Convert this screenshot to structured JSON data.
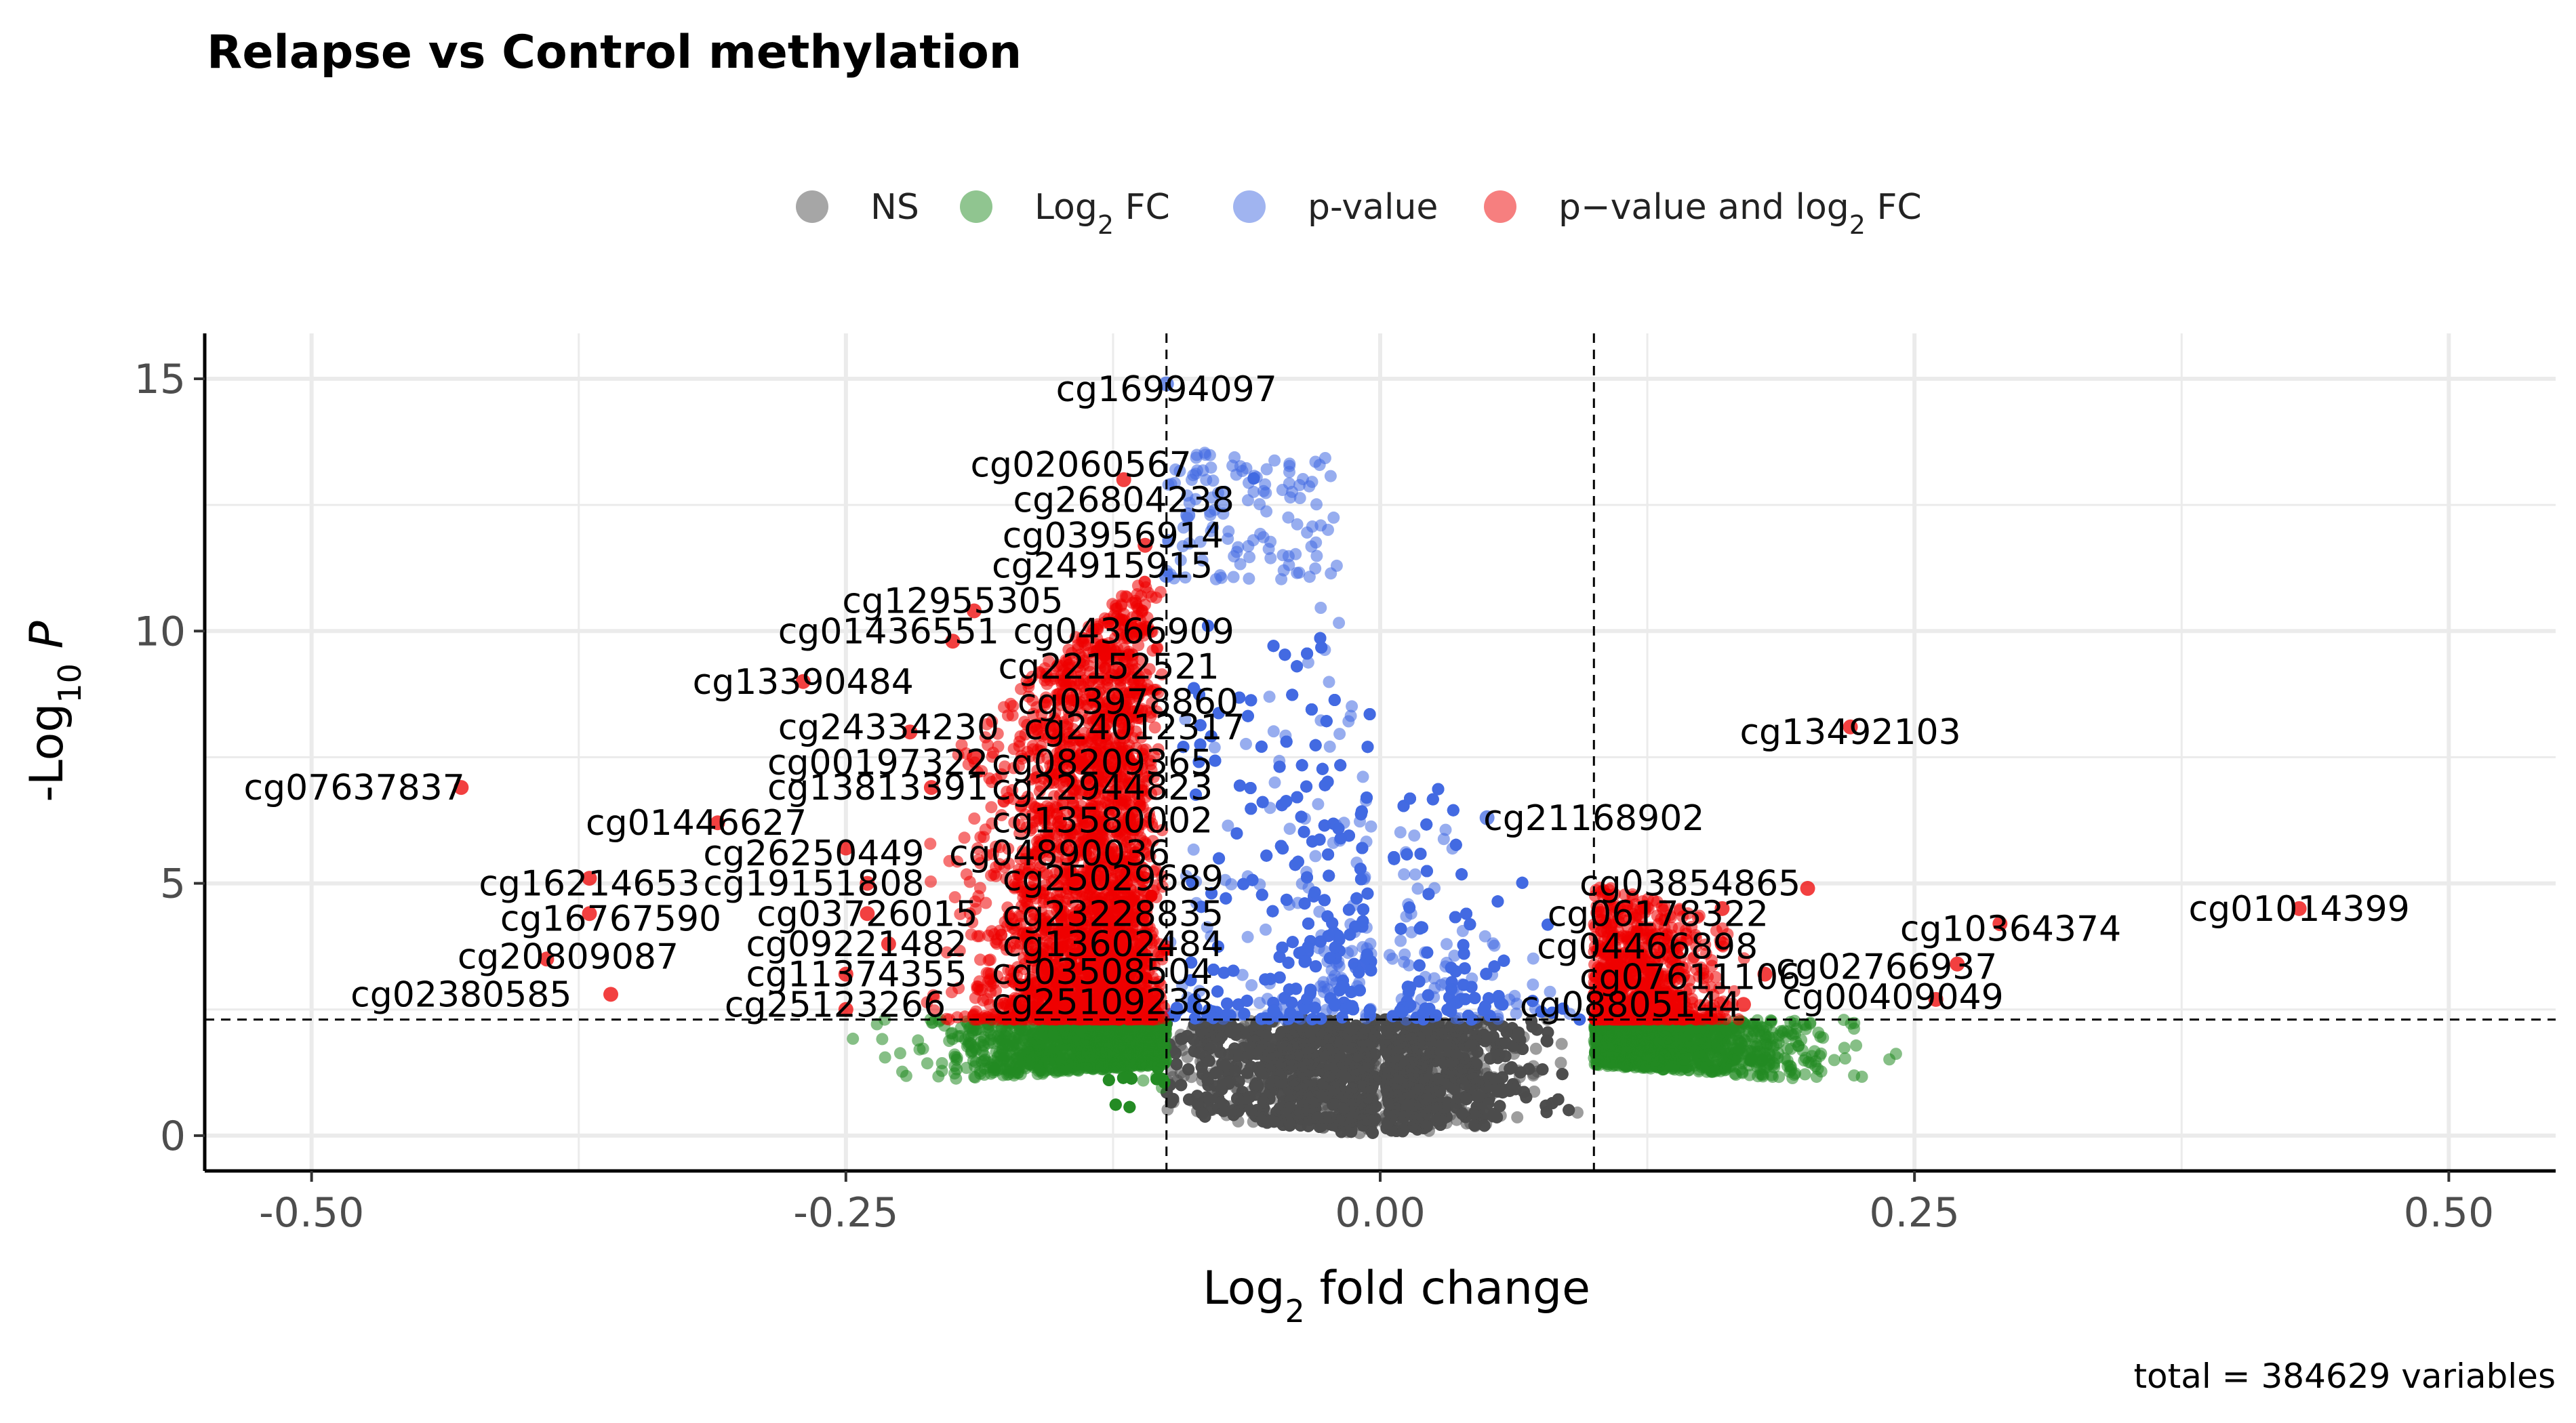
{
  "chart_data": {
    "type": "scatter",
    "title": "Relapse vs Control methylation",
    "xlabel": "Log2  fold change",
    "ylabel": "-Log10  P",
    "caption": "total = 384629 variables",
    "xlim": [
      -0.55,
      0.55
    ],
    "ylim": [
      -0.7,
      15.9
    ],
    "x_ticks": [
      -0.5,
      -0.25,
      0.0,
      0.25,
      0.5
    ],
    "x_tick_labels": [
      "-0.50",
      "-0.25",
      "0.00",
      "0.25",
      "0.50"
    ],
    "y_ticks": [
      0,
      5,
      10,
      15
    ],
    "y_tick_labels": [
      "0",
      "5",
      "10",
      "15"
    ],
    "grid": true,
    "legend_position": "top",
    "thresholds": {
      "log2fc": [
        -0.1,
        0.1
      ],
      "neg_log10_p": 2.3
    },
    "legend": [
      {
        "name": "NS",
        "color": "#4d4d4d"
      },
      {
        "name": "Log2 FC",
        "color": "#228b22"
      },
      {
        "name": "p-value",
        "color": "#4169e1"
      },
      {
        "name": "p−value  and  log2  FC",
        "color": "#ee0000"
      }
    ],
    "labeled_points": [
      {
        "label": "cg16994097",
        "x": -0.1,
        "y": 14.9,
        "lx": -0.1,
        "ly": 14.8
      },
      {
        "label": "cg02060567",
        "x": -0.12,
        "y": 13.0,
        "lx": -0.14,
        "ly": 13.3
      },
      {
        "label": "cg26804238",
        "x": -0.09,
        "y": 12.3,
        "lx": -0.12,
        "ly": 12.6
      },
      {
        "label": "cg03956914",
        "x": -0.11,
        "y": 11.7,
        "lx": -0.125,
        "ly": 11.9
      },
      {
        "label": "cg24915915",
        "x": -0.1,
        "y": 11.1,
        "lx": -0.13,
        "ly": 11.3
      },
      {
        "label": "cg12955305",
        "x": -0.19,
        "y": 10.4,
        "lx": -0.2,
        "ly": 10.6
      },
      {
        "label": "cg01436551",
        "x": -0.2,
        "y": 9.8,
        "lx": -0.23,
        "ly": 10.0
      },
      {
        "label": "cg04366909",
        "x": -0.13,
        "y": 9.7,
        "lx": -0.12,
        "ly": 10.0
      },
      {
        "label": "cg13390484",
        "x": -0.27,
        "y": 9.0,
        "lx": -0.27,
        "ly": 9.0
      },
      {
        "label": "cg22152521",
        "x": -0.12,
        "y": 9.2,
        "lx": -0.127,
        "ly": 9.3
      },
      {
        "label": "cg03978860",
        "x": -0.12,
        "y": 8.5,
        "lx": -0.118,
        "ly": 8.6
      },
      {
        "label": "cg24334230",
        "x": -0.22,
        "y": 8.0,
        "lx": -0.23,
        "ly": 8.1
      },
      {
        "label": "cg24012317",
        "x": -0.12,
        "y": 7.9,
        "lx": -0.115,
        "ly": 8.1
      },
      {
        "label": "cg00197322",
        "x": -0.19,
        "y": 7.5,
        "lx": -0.235,
        "ly": 7.4
      },
      {
        "label": "cg08209365",
        "x": -0.14,
        "y": 7.3,
        "lx": -0.13,
        "ly": 7.4
      },
      {
        "label": "cg07637837",
        "x": -0.43,
        "y": 6.9,
        "lx": -0.48,
        "ly": 6.9
      },
      {
        "label": "cg13813391",
        "x": -0.21,
        "y": 6.9,
        "lx": -0.235,
        "ly": 6.9
      },
      {
        "label": "cg22944823",
        "x": -0.14,
        "y": 6.8,
        "lx": -0.13,
        "ly": 6.9
      },
      {
        "label": "cg01446627",
        "x": -0.31,
        "y": 6.2,
        "lx": -0.32,
        "ly": 6.2
      },
      {
        "label": "cg13580002",
        "x": -0.15,
        "y": 6.2,
        "lx": -0.13,
        "ly": 6.25
      },
      {
        "label": "cg26250449",
        "x": -0.25,
        "y": 5.7,
        "lx": -0.265,
        "ly": 5.6
      },
      {
        "label": "cg04890036",
        "x": -0.16,
        "y": 5.6,
        "lx": -0.15,
        "ly": 5.6
      },
      {
        "label": "cg16214653",
        "x": -0.37,
        "y": 5.1,
        "lx": -0.37,
        "ly": 5.0
      },
      {
        "label": "cg19151808",
        "x": -0.24,
        "y": 5.0,
        "lx": -0.265,
        "ly": 5.0
      },
      {
        "label": "cg25029689",
        "x": -0.14,
        "y": 5.1,
        "lx": -0.125,
        "ly": 5.1
      },
      {
        "label": "cg16767590",
        "x": -0.37,
        "y": 4.4,
        "lx": -0.36,
        "ly": 4.3
      },
      {
        "label": "cg03726015",
        "x": -0.24,
        "y": 4.4,
        "lx": -0.24,
        "ly": 4.4
      },
      {
        "label": "cg23228835",
        "x": -0.13,
        "y": 4.4,
        "lx": -0.125,
        "ly": 4.4
      },
      {
        "label": "cg09221482",
        "x": -0.23,
        "y": 3.8,
        "lx": -0.245,
        "ly": 3.8
      },
      {
        "label": "cg13602484",
        "x": -0.13,
        "y": 3.8,
        "lx": -0.125,
        "ly": 3.8
      },
      {
        "label": "cg20809087",
        "x": -0.39,
        "y": 3.5,
        "lx": -0.38,
        "ly": 3.55
      },
      {
        "label": "cg11374355",
        "x": -0.25,
        "y": 3.2,
        "lx": -0.245,
        "ly": 3.2
      },
      {
        "label": "cg03508504",
        "x": -0.13,
        "y": 3.2,
        "lx": -0.13,
        "ly": 3.25
      },
      {
        "label": "cg02380585",
        "x": -0.36,
        "y": 2.8,
        "lx": -0.43,
        "ly": 2.8
      },
      {
        "label": "cg25123266",
        "x": -0.25,
        "y": 2.5,
        "lx": -0.255,
        "ly": 2.6
      },
      {
        "label": "cg25109238",
        "x": -0.12,
        "y": 2.6,
        "lx": -0.13,
        "ly": 2.65
      },
      {
        "label": "cg13492103",
        "x": 0.22,
        "y": 8.1,
        "lx": 0.22,
        "ly": 8.0
      },
      {
        "label": "cg21168902",
        "x": 0.05,
        "y": 6.3,
        "lx": 0.1,
        "ly": 6.3
      },
      {
        "label": "cg03854865",
        "x": 0.2,
        "y": 4.9,
        "lx": 0.145,
        "ly": 5.0
      },
      {
        "label": "cg06178322",
        "x": 0.16,
        "y": 4.5,
        "lx": 0.13,
        "ly": 4.4
      },
      {
        "label": "cg10364374",
        "x": 0.29,
        "y": 4.2,
        "lx": 0.295,
        "ly": 4.1
      },
      {
        "label": "cg01014399",
        "x": 0.43,
        "y": 4.5,
        "lx": 0.43,
        "ly": 4.5
      },
      {
        "label": "cg04466898",
        "x": 0.16,
        "y": 3.8,
        "lx": 0.125,
        "ly": 3.75
      },
      {
        "label": "cg07611106",
        "x": 0.18,
        "y": 3.2,
        "lx": 0.145,
        "ly": 3.15
      },
      {
        "label": "cg02766937",
        "x": 0.27,
        "y": 3.4,
        "lx": 0.237,
        "ly": 3.35
      },
      {
        "label": "cg08805144",
        "x": 0.17,
        "y": 2.6,
        "lx": 0.117,
        "ly": 2.6
      },
      {
        "label": "cg00409049",
        "x": 0.26,
        "y": 2.7,
        "lx": 0.24,
        "ly": 2.75
      }
    ]
  }
}
